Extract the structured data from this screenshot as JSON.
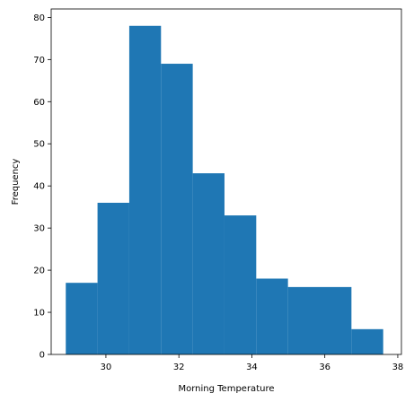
{
  "chart_data": {
    "type": "bar",
    "subtype": "histogram",
    "title": "",
    "xlabel": "Morning Temperature",
    "ylabel": "Frequency",
    "xlim": [
      28.5,
      38.1
    ],
    "ylim": [
      0,
      82
    ],
    "bar_color": "#1f77b4",
    "grid": false,
    "x_ticks": [
      30,
      32,
      34,
      36,
      38
    ],
    "y_ticks": [
      0,
      10,
      20,
      30,
      40,
      50,
      60,
      70,
      80
    ],
    "bins": [
      {
        "x0": 28.9,
        "x1": 29.77,
        "count": 17
      },
      {
        "x0": 29.77,
        "x1": 30.64,
        "count": 36
      },
      {
        "x0": 30.64,
        "x1": 31.51,
        "count": 78
      },
      {
        "x0": 31.51,
        "x1": 32.38,
        "count": 69
      },
      {
        "x0": 32.38,
        "x1": 33.25,
        "count": 43
      },
      {
        "x0": 33.25,
        "x1": 34.12,
        "count": 33
      },
      {
        "x0": 34.12,
        "x1": 34.99,
        "count": 18
      },
      {
        "x0": 34.99,
        "x1": 35.86,
        "count": 16
      },
      {
        "x0": 35.86,
        "x1": 36.73,
        "count": 16
      },
      {
        "x0": 36.73,
        "x1": 37.6,
        "count": 6
      }
    ]
  }
}
